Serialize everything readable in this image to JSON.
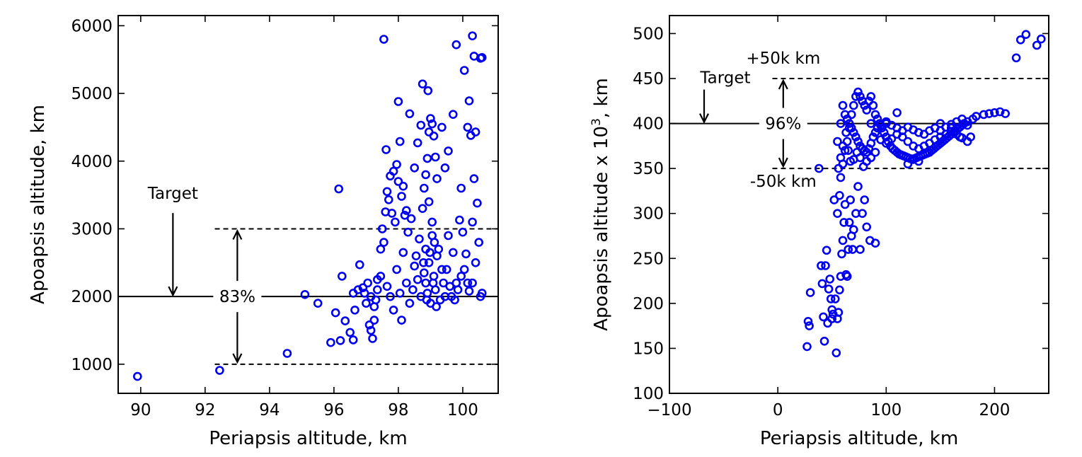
{
  "chart_data": [
    {
      "type": "scatter",
      "xlabel": "Periapsis altitude, km",
      "ylabel": "Apoapsis altitude, km",
      "xlim": [
        89.3,
        101.1
      ],
      "ylim": [
        570,
        6150
      ],
      "xticks": [
        90,
        92,
        94,
        96,
        98,
        100
      ],
      "yticks": [
        1000,
        2000,
        3000,
        4000,
        5000,
        6000
      ],
      "grid": false,
      "marker_color": "#0000ee",
      "target_line": 2000,
      "bounds": [
        1000,
        3000
      ],
      "annotations": {
        "target": "Target",
        "percent": "83%"
      },
      "points": [
        [
          89.9,
          820
        ],
        [
          92.45,
          910
        ],
        [
          94.55,
          1160
        ],
        [
          95.1,
          2030
        ],
        [
          95.5,
          1900
        ],
        [
          95.9,
          1320
        ],
        [
          96.05,
          1760
        ],
        [
          96.15,
          3590
        ],
        [
          96.2,
          1350
        ],
        [
          96.25,
          2300
        ],
        [
          96.35,
          1640
        ],
        [
          96.5,
          1470
        ],
        [
          96.6,
          1360
        ],
        [
          96.65,
          1800
        ],
        [
          96.6,
          2050
        ],
        [
          96.75,
          2100
        ],
        [
          96.8,
          2470
        ],
        [
          96.9,
          2130
        ],
        [
          97.0,
          1900
        ],
        [
          97.1,
          1580
        ],
        [
          97.2,
          1380
        ],
        [
          97.15,
          1500
        ],
        [
          97.25,
          1650
        ],
        [
          97.3,
          1950
        ],
        [
          97.35,
          2250
        ],
        [
          97.45,
          2700
        ],
        [
          97.5,
          3000
        ],
        [
          97.6,
          3250
        ],
        [
          97.65,
          3550
        ],
        [
          97.75,
          3780
        ],
        [
          97.85,
          3850
        ],
        [
          97.95,
          3950
        ],
        [
          98.0,
          3700
        ],
        [
          98.1,
          3480
        ],
        [
          98.2,
          3200
        ],
        [
          98.3,
          2950
        ],
        [
          98.35,
          4700
        ],
        [
          97.55,
          5800
        ],
        [
          97.62,
          4170
        ],
        [
          97.7,
          3430
        ],
        [
          97.8,
          3230
        ],
        [
          97.9,
          3100
        ],
        [
          98.0,
          4880
        ],
        [
          98.05,
          4290
        ],
        [
          98.15,
          3630
        ],
        [
          98.25,
          3270
        ],
        [
          98.4,
          3150
        ],
        [
          98.5,
          3900
        ],
        [
          98.6,
          4270
        ],
        [
          98.7,
          4530
        ],
        [
          98.75,
          5140
        ],
        [
          98.8,
          3600
        ],
        [
          98.85,
          3800
        ],
        [
          98.9,
          4040
        ],
        [
          98.95,
          4430
        ],
        [
          99.0,
          4630
        ],
        [
          99.05,
          4550
        ],
        [
          99.1,
          4370
        ],
        [
          99.15,
          4060
        ],
        [
          99.2,
          3740
        ],
        [
          98.92,
          5040
        ],
        [
          99.35,
          4500
        ],
        [
          99.45,
          3900
        ],
        [
          99.55,
          4150
        ],
        [
          99.7,
          4690
        ],
        [
          99.8,
          5720
        ],
        [
          99.95,
          3600
        ],
        [
          100.05,
          5340
        ],
        [
          100.15,
          4500
        ],
        [
          100.2,
          4890
        ],
        [
          100.25,
          4380
        ],
        [
          100.3,
          5850
        ],
        [
          100.35,
          5550
        ],
        [
          100.4,
          4430
        ],
        [
          100.35,
          3740
        ],
        [
          100.45,
          3380
        ],
        [
          100.55,
          5520
        ],
        [
          100.6,
          5530
        ],
        [
          100.3,
          3100
        ],
        [
          100.5,
          2800
        ],
        [
          100.4,
          2500
        ],
        [
          100.3,
          2200
        ],
        [
          100.2,
          2080
        ],
        [
          100.55,
          2000
        ],
        [
          100.6,
          2050
        ],
        [
          100.1,
          2630
        ],
        [
          100.0,
          2950
        ],
        [
          99.9,
          3130
        ],
        [
          99.8,
          2200
        ],
        [
          99.7,
          2650
        ],
        [
          99.6,
          2150
        ],
        [
          99.55,
          2900
        ],
        [
          99.45,
          2000
        ],
        [
          99.35,
          2400
        ],
        [
          99.25,
          2700
        ],
        [
          99.15,
          2100
        ],
        [
          99.05,
          2900
        ],
        [
          98.95,
          2500
        ],
        [
          98.85,
          2200
        ],
        [
          98.75,
          3300
        ],
        [
          98.65,
          2850
        ],
        [
          98.55,
          2600
        ],
        [
          98.45,
          2100
        ],
        [
          98.35,
          1900
        ],
        [
          98.25,
          2200
        ],
        [
          98.15,
          2650
        ],
        [
          98.1,
          1650
        ],
        [
          98.05,
          2050
        ],
        [
          97.95,
          2400
        ],
        [
          97.85,
          1800
        ],
        [
          97.75,
          2000
        ],
        [
          97.65,
          2150
        ],
        [
          97.55,
          2800
        ],
        [
          97.45,
          2300
        ],
        [
          97.35,
          2100
        ],
        [
          97.25,
          1850
        ],
        [
          97.15,
          2000
        ],
        [
          97.05,
          2200
        ],
        [
          96.95,
          2050
        ],
        [
          98.8,
          2350
        ],
        [
          98.9,
          2050
        ],
        [
          99.0,
          1900
        ],
        [
          99.1,
          2300
        ],
        [
          99.2,
          2600
        ],
        [
          99.3,
          1950
        ],
        [
          98.7,
          2000
        ],
        [
          98.6,
          2250
        ],
        [
          98.5,
          2450
        ],
        [
          99.4,
          2200
        ],
        [
          99.5,
          2400
        ],
        [
          99.65,
          2000
        ],
        [
          99.75,
          1950
        ],
        [
          99.85,
          2100
        ],
        [
          99.95,
          2300
        ],
        [
          100.05,
          2400
        ],
        [
          100.15,
          2200
        ],
        [
          98.95,
          3400
        ],
        [
          99.05,
          3100
        ],
        [
          98.85,
          2700
        ],
        [
          99.12,
          2800
        ],
        [
          98.78,
          2500
        ],
        [
          98.98,
          2650
        ],
        [
          99.08,
          2200
        ],
        [
          98.88,
          1950
        ],
        [
          99.18,
          1850
        ]
      ]
    },
    {
      "type": "scatter",
      "xlabel": "Periapsis altitude, km",
      "ylabel": "Apoapsis altitude x 10",
      "ylabel_sup": "3",
      "ylabel_unit": ", km",
      "xlim": [
        -100,
        250
      ],
      "ylim": [
        100,
        520
      ],
      "xticks": [
        -100,
        0,
        100,
        200
      ],
      "xtick_labels": [
        "−100",
        "0",
        "100",
        "200"
      ],
      "yticks": [
        100,
        150,
        200,
        250,
        300,
        350,
        400,
        450,
        500
      ],
      "grid": false,
      "marker_color": "#0000ee",
      "target_line": 400,
      "bounds": [
        350,
        450
      ],
      "annotations": {
        "target": "Target",
        "percent": "96%",
        "upper": "+50k km",
        "lower": "-50k km"
      },
      "points": [
        [
          27,
          152
        ],
        [
          28,
          180
        ],
        [
          29,
          175
        ],
        [
          30,
          212
        ],
        [
          38,
          350
        ],
        [
          40,
          242
        ],
        [
          41,
          222
        ],
        [
          42,
          185
        ],
        [
          43,
          158
        ],
        [
          44,
          242
        ],
        [
          45,
          259
        ],
        [
          46,
          178
        ],
        [
          47,
          216
        ],
        [
          48,
          227
        ],
        [
          49,
          205
        ],
        [
          50,
          183
        ],
        [
          50,
          193
        ],
        [
          51,
          188
        ],
        [
          52,
          315
        ],
        [
          53,
          205
        ],
        [
          54,
          145
        ],
        [
          55,
          183
        ],
        [
          56,
          190
        ],
        [
          57,
          215
        ],
        [
          58,
          230
        ],
        [
          59,
          255
        ],
        [
          60,
          270
        ],
        [
          61,
          290
        ],
        [
          62,
          310
        ],
        [
          63,
          232
        ],
        [
          64,
          230
        ],
        [
          65,
          260
        ],
        [
          66,
          290
        ],
        [
          67,
          315
        ],
        [
          68,
          275
        ],
        [
          69,
          260
        ],
        [
          70,
          282
        ],
        [
          72,
          300
        ],
        [
          74,
          330
        ],
        [
          76,
          260
        ],
        [
          78,
          300
        ],
        [
          80,
          315
        ],
        [
          82,
          285
        ],
        [
          85,
          270
        ],
        [
          90,
          267
        ],
        [
          55,
          300
        ],
        [
          57,
          320
        ],
        [
          58,
          340
        ],
        [
          60,
          355
        ],
        [
          62,
          370
        ],
        [
          64,
          380
        ],
        [
          66,
          395
        ],
        [
          68,
          410
        ],
        [
          70,
          420
        ],
        [
          72,
          430
        ],
        [
          74,
          435
        ],
        [
          76,
          430
        ],
        [
          78,
          425
        ],
        [
          80,
          420
        ],
        [
          82,
          415
        ],
        [
          84,
          425
        ],
        [
          86,
          430
        ],
        [
          88,
          420
        ],
        [
          90,
          410
        ],
        [
          92,
          405
        ],
        [
          94,
          400
        ],
        [
          96,
          395
        ],
        [
          98,
          390
        ],
        [
          100,
          385
        ],
        [
          102,
          380
        ],
        [
          104,
          375
        ],
        [
          106,
          372
        ],
        [
          108,
          370
        ],
        [
          110,
          368
        ],
        [
          112,
          366
        ],
        [
          114,
          365
        ],
        [
          116,
          364
        ],
        [
          118,
          363
        ],
        [
          120,
          362
        ],
        [
          122,
          361
        ],
        [
          124,
          360
        ],
        [
          126,
          361
        ],
        [
          128,
          362
        ],
        [
          130,
          363
        ],
        [
          132,
          364
        ],
        [
          134,
          365
        ],
        [
          136,
          366
        ],
        [
          138,
          367
        ],
        [
          140,
          368
        ],
        [
          142,
          370
        ],
        [
          144,
          372
        ],
        [
          146,
          374
        ],
        [
          148,
          376
        ],
        [
          150,
          378
        ],
        [
          152,
          380
        ],
        [
          154,
          382
        ],
        [
          156,
          384
        ],
        [
          158,
          386
        ],
        [
          160,
          388
        ],
        [
          162,
          390
        ],
        [
          164,
          392
        ],
        [
          166,
          394
        ],
        [
          168,
          396
        ],
        [
          170,
          398
        ],
        [
          172,
          400
        ],
        [
          175,
          402
        ],
        [
          180,
          405
        ],
        [
          183,
          408
        ],
        [
          190,
          410
        ],
        [
          195,
          411
        ],
        [
          200,
          412
        ],
        [
          205,
          413
        ],
        [
          210,
          411
        ],
        [
          55,
          380
        ],
        [
          58,
          400
        ],
        [
          60,
          420
        ],
        [
          62,
          410
        ],
        [
          64,
          405
        ],
        [
          66,
          400
        ],
        [
          68,
          395
        ],
        [
          70,
          390
        ],
        [
          72,
          385
        ],
        [
          74,
          380
        ],
        [
          76,
          375
        ],
        [
          78,
          372
        ],
        [
          80,
          370
        ],
        [
          82,
          368
        ],
        [
          84,
          372
        ],
        [
          86,
          378
        ],
        [
          88,
          385
        ],
        [
          90,
          390
        ],
        [
          95,
          382
        ],
        [
          100,
          378
        ],
        [
          105,
          383
        ],
        [
          110,
          388
        ],
        [
          115,
          385
        ],
        [
          120,
          380
        ],
        [
          125,
          375
        ],
        [
          130,
          372
        ],
        [
          135,
          375
        ],
        [
          140,
          378
        ],
        [
          145,
          382
        ],
        [
          150,
          385
        ],
        [
          155,
          388
        ],
        [
          160,
          391
        ],
        [
          165,
          388
        ],
        [
          170,
          384
        ],
        [
          175,
          380
        ],
        [
          178,
          385
        ],
        [
          56,
          350
        ],
        [
          58,
          362
        ],
        [
          60,
          375
        ],
        [
          63,
          390
        ],
        [
          65,
          370
        ],
        [
          67,
          358
        ],
        [
          70,
          360
        ],
        [
          73,
          368
        ],
        [
          76,
          362
        ],
        [
          79,
          352
        ],
        [
          82,
          358
        ],
        [
          86,
          362
        ],
        [
          90,
          368
        ],
        [
          95,
          398
        ],
        [
          100,
          402
        ],
        [
          105,
          398
        ],
        [
          110,
          395
        ],
        [
          115,
          392
        ],
        [
          120,
          396
        ],
        [
          125,
          393
        ],
        [
          130,
          390
        ],
        [
          135,
          388
        ],
        [
          140,
          392
        ],
        [
          145,
          395
        ],
        [
          150,
          392
        ],
        [
          155,
          396
        ],
        [
          160,
          399
        ],
        [
          165,
          402
        ],
        [
          170,
          405
        ],
        [
          175,
          398
        ],
        [
          120,
          355
        ],
        [
          125,
          360
        ],
        [
          130,
          358
        ],
        [
          220,
          473
        ],
        [
          224,
          493
        ],
        [
          229,
          499
        ],
        [
          239,
          487
        ],
        [
          243,
          494
        ],
        [
          150,
          400
        ],
        [
          160,
          395
        ],
        [
          168,
          385
        ],
        [
          110,
          412
        ],
        [
          100,
          400
        ],
        [
          92,
          395
        ],
        [
          86,
          400
        ]
      ]
    }
  ]
}
